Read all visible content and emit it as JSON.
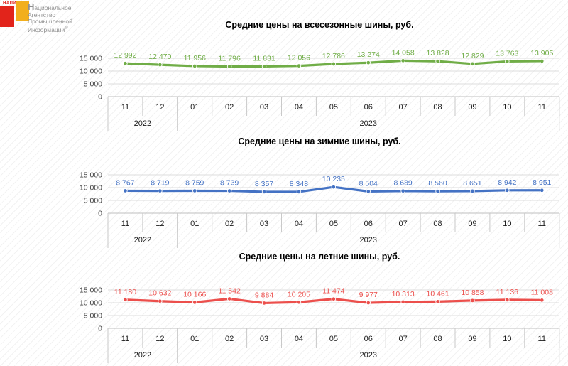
{
  "logo": {
    "wordmark": "НАПИ",
    "org_name_lines": [
      "Национальное",
      "Агентство",
      "Промышленной",
      "Информации"
    ],
    "registered_symbol": "®",
    "square_red_color": "#e2241b",
    "square_yellow_color": "#f2af1d",
    "text_color": "#8f8f8f"
  },
  "axis": {
    "months": [
      "11",
      "12",
      "01",
      "02",
      "03",
      "04",
      "05",
      "06",
      "07",
      "08",
      "09",
      "10",
      "11"
    ],
    "years": [
      {
        "label": "2022",
        "start": 0,
        "span": 2
      },
      {
        "label": "2023",
        "start": 2,
        "span": 11
      }
    ],
    "ytick_values": [
      15000,
      10000,
      5000,
      0
    ],
    "ytick_labels": [
      "15 000",
      "10 000",
      "5 000",
      "0"
    ],
    "ylim": [
      0,
      15000
    ],
    "grid": true,
    "legend": false
  },
  "chart_data": [
    {
      "type": "line",
      "title": "Средние цены на всесезонные шины, руб.",
      "series_name": "всесезонные шины",
      "color": "#70AD47",
      "categories": [
        "11.2022",
        "12.2022",
        "01.2023",
        "02.2023",
        "03.2023",
        "04.2023",
        "05.2023",
        "06.2023",
        "07.2023",
        "08.2023",
        "09.2023",
        "10.2023",
        "11.2023"
      ],
      "values": [
        12992,
        12470,
        11956,
        11796,
        11831,
        12056,
        12786,
        13274,
        14058,
        13828,
        12829,
        13763,
        13905
      ],
      "data_labels": [
        "12 992",
        "12 470",
        "11 956",
        "11 796",
        "11 831",
        "12 056",
        "12 786",
        "13 274",
        "14 058",
        "13 828",
        "12 829",
        "13 763",
        "13 905"
      ],
      "ylim": [
        0,
        15000
      ]
    },
    {
      "type": "line",
      "title": "Средние цены на зимние шины, руб.",
      "series_name": "зимние шины",
      "color": "#4472C4",
      "categories": [
        "11.2022",
        "12.2022",
        "01.2023",
        "02.2023",
        "03.2023",
        "04.2023",
        "05.2023",
        "06.2023",
        "07.2023",
        "08.2023",
        "09.2023",
        "10.2023",
        "11.2023"
      ],
      "values": [
        8767,
        8719,
        8759,
        8739,
        8357,
        8348,
        10235,
        8504,
        8689,
        8560,
        8651,
        8942,
        8951
      ],
      "data_labels": [
        "8 767",
        "8 719",
        "8 759",
        "8 739",
        "8 357",
        "8 348",
        "10 235",
        "8 504",
        "8 689",
        "8 560",
        "8 651",
        "8 942",
        "8 951"
      ],
      "ylim": [
        0,
        15000
      ]
    },
    {
      "type": "line",
      "title": "Средние цены на летние шины, руб.",
      "series_name": "летние шины",
      "color": "#EC4F4C",
      "categories": [
        "11.2022",
        "12.2022",
        "01.2023",
        "02.2023",
        "03.2023",
        "04.2023",
        "05.2023",
        "06.2023",
        "07.2023",
        "08.2023",
        "09.2023",
        "10.2023",
        "11.2023"
      ],
      "values": [
        11180,
        10632,
        10166,
        11542,
        9884,
        10205,
        11474,
        9977,
        10313,
        10461,
        10858,
        11136,
        11008
      ],
      "data_labels": [
        "11 180",
        "10 632",
        "10 166",
        "11 542",
        "9 884",
        "10 205",
        "11 474",
        "9 977",
        "10 313",
        "10 461",
        "10 858",
        "11 136",
        "11 008"
      ],
      "ylim": [
        0,
        15000
      ]
    }
  ]
}
